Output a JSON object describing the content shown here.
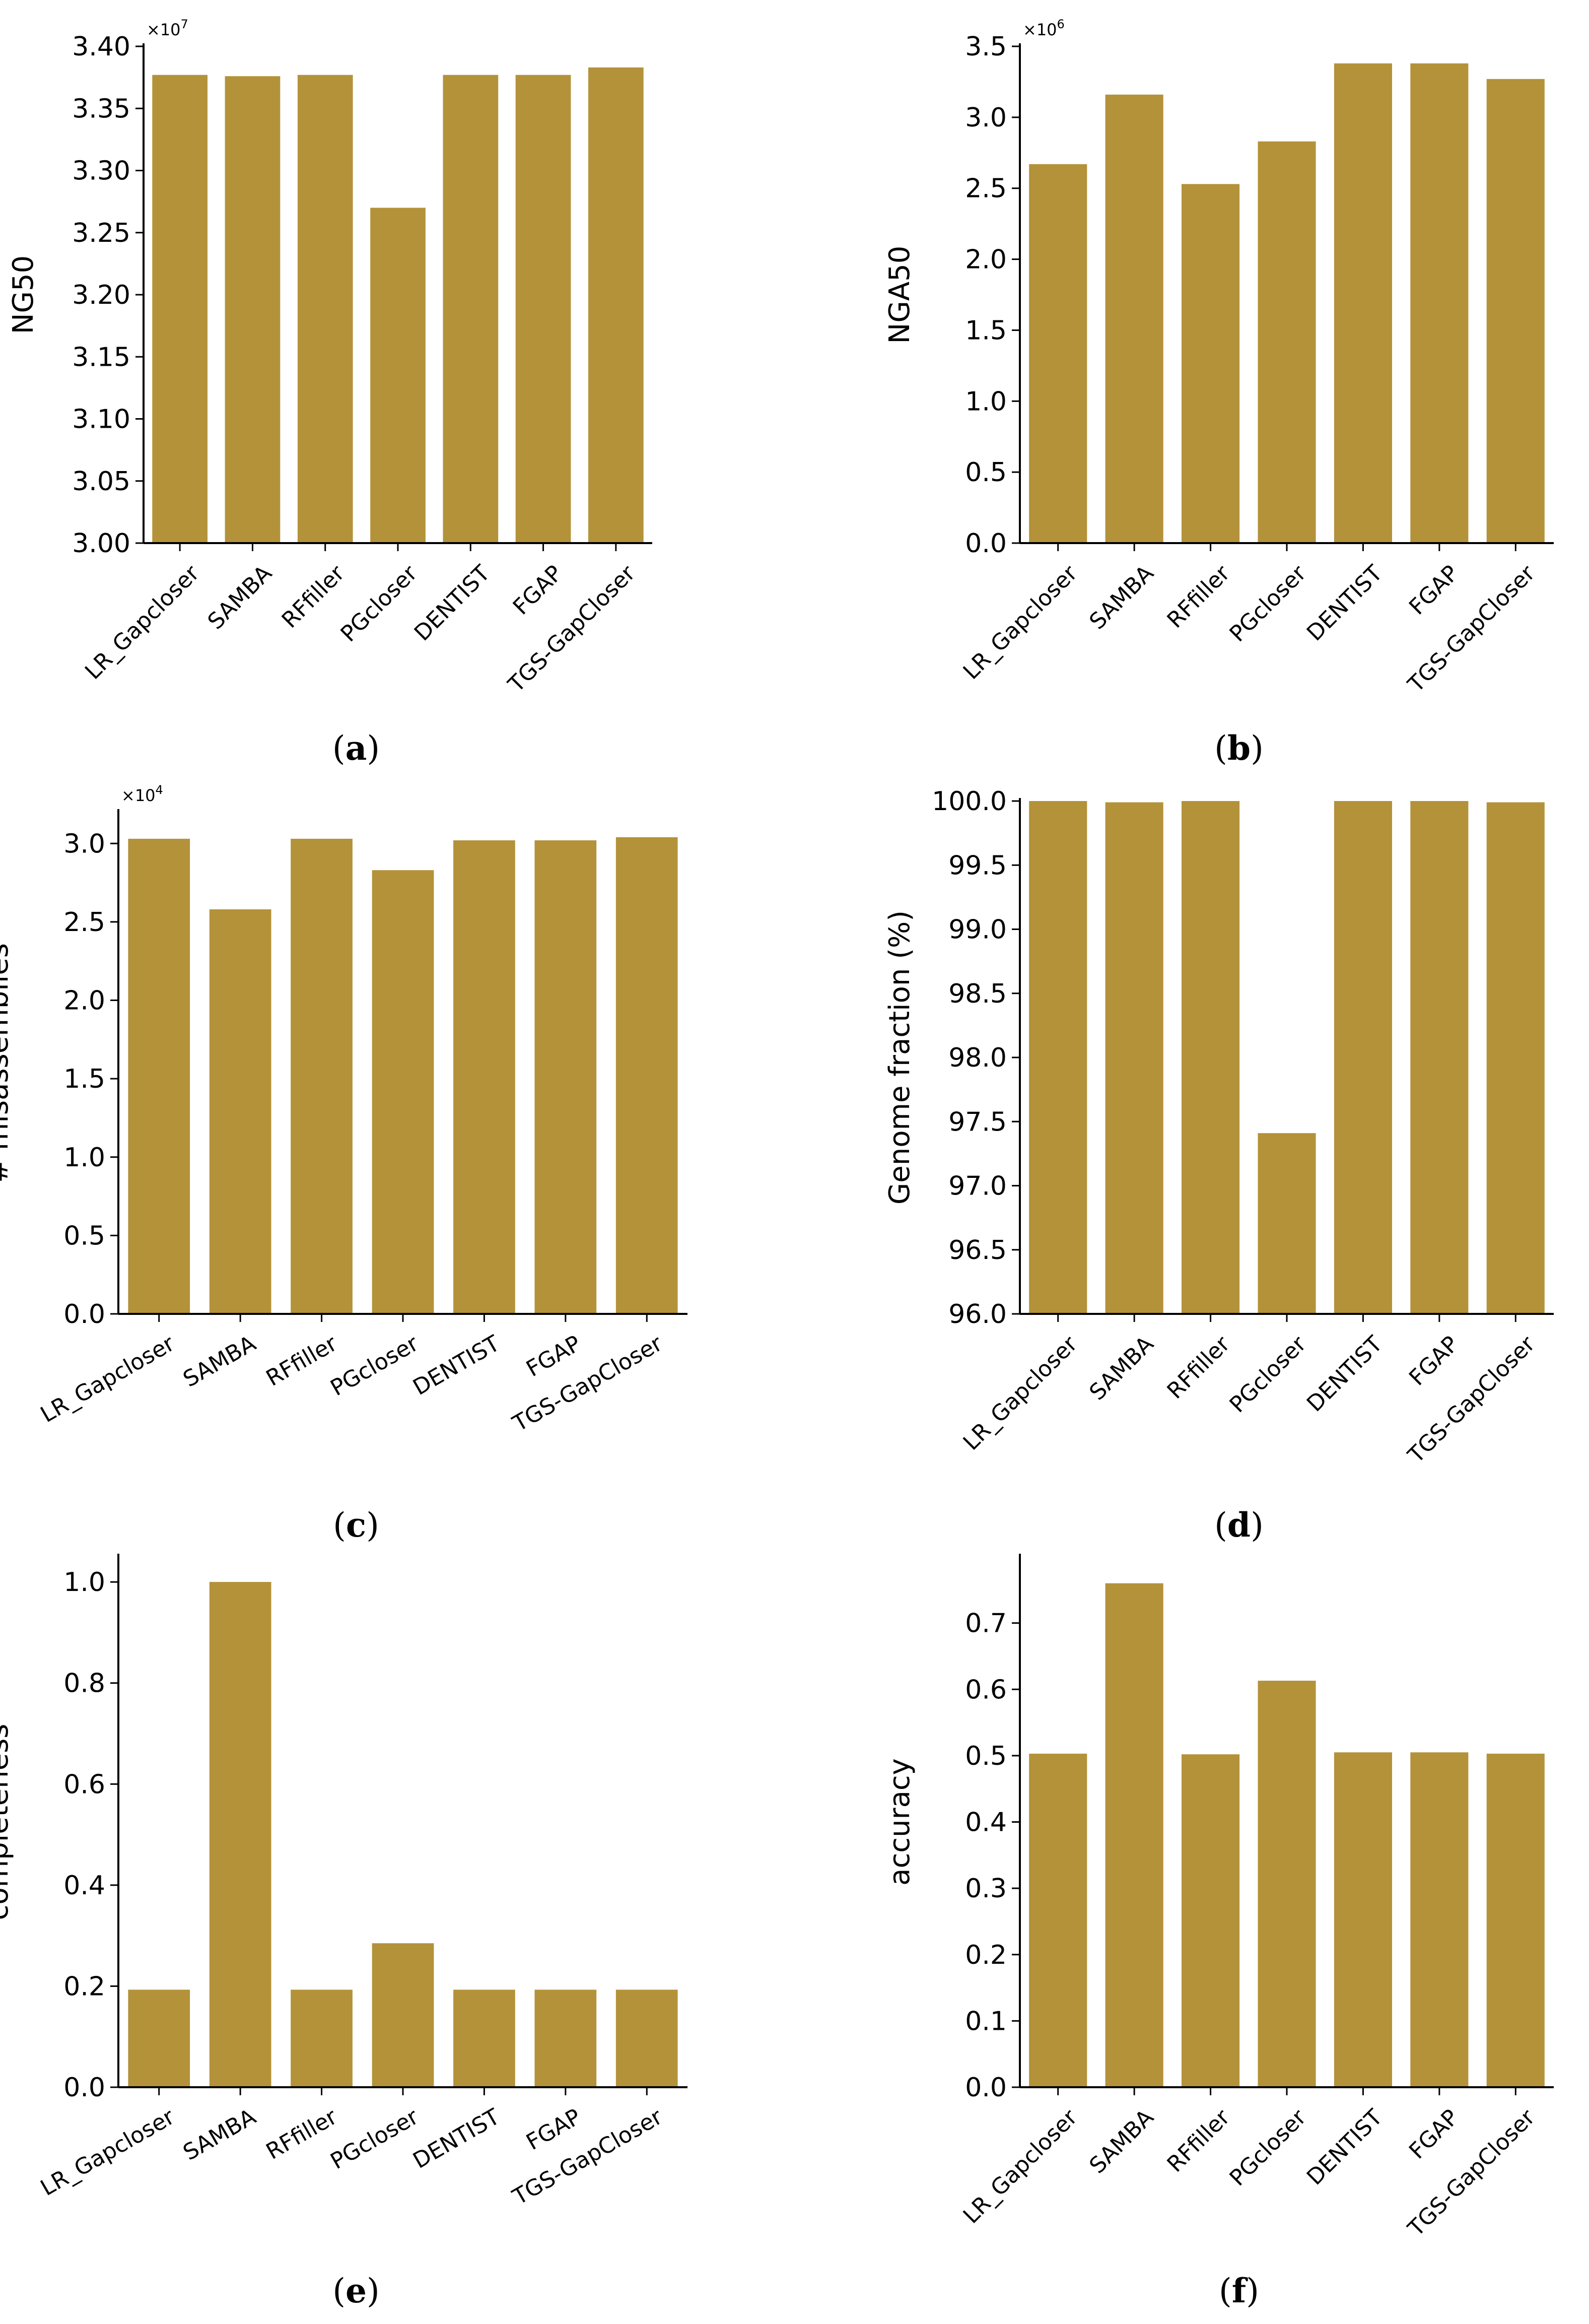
{
  "figure": {
    "bar_color": "#b39239",
    "axis_color": "#000000"
  },
  "chart_data": [
    {
      "id": "a",
      "type": "bar",
      "caption": "a",
      "categories": [
        "LR_Gapcloser",
        "SAMBA",
        "RFfiller",
        "PGcloser",
        "DENTIST",
        "FGAP",
        "TGS-GapCloser"
      ],
      "values": [
        3.377,
        3.376,
        3.377,
        3.27,
        3.377,
        3.377,
        3.383
      ],
      "ylabel": "NG50",
      "ylim": [
        3.0,
        3.4
      ],
      "yticks": [
        "3.00",
        "3.05",
        "3.10",
        "3.15",
        "3.20",
        "3.25",
        "3.30",
        "3.35",
        "3.40"
      ],
      "multiplier": "×10",
      "multiplier_exp": "7",
      "label_rotation": -45
    },
    {
      "id": "b",
      "type": "bar",
      "caption": "b",
      "categories": [
        "LR_Gapcloser",
        "SAMBA",
        "RFfiller",
        "PGcloser",
        "DENTIST",
        "FGAP",
        "TGS-GapCloser"
      ],
      "values": [
        2.67,
        3.16,
        2.53,
        2.83,
        3.38,
        3.38,
        3.27
      ],
      "ylabel": "NGA50",
      "ylim": [
        0.0,
        3.5
      ],
      "yticks": [
        "0.0",
        "0.5",
        "1.0",
        "1.5",
        "2.0",
        "2.5",
        "3.0",
        "3.5"
      ],
      "multiplier": "×10",
      "multiplier_exp": "6",
      "label_rotation": -45
    },
    {
      "id": "c",
      "type": "bar",
      "caption": "c",
      "categories": [
        "LR_Gapcloser",
        "SAMBA",
        "RFfiller",
        "PGcloser",
        "DENTIST",
        "FGAP",
        "TGS-GapCloser"
      ],
      "values": [
        3.03,
        2.58,
        3.03,
        2.83,
        3.02,
        3.02,
        3.04
      ],
      "ylabel": "# misassemblies",
      "ylim": [
        0.0,
        3.2
      ],
      "yticks": [
        "0.0",
        "0.5",
        "1.0",
        "1.5",
        "2.0",
        "2.5",
        "3.0"
      ],
      "multiplier": "×10",
      "multiplier_exp": "4",
      "label_rotation": -30
    },
    {
      "id": "d",
      "type": "bar",
      "caption": "d",
      "categories": [
        "LR_Gapcloser",
        "SAMBA",
        "RFfiller",
        "PGcloser",
        "DENTIST",
        "FGAP",
        "TGS-GapCloser"
      ],
      "values": [
        100.0,
        99.99,
        100.0,
        97.41,
        100.0,
        100.0,
        99.99
      ],
      "ylabel": "Genome fraction (%)",
      "ylim": [
        96.0,
        100.0
      ],
      "yticks": [
        "96.0",
        "96.5",
        "97.0",
        "97.5",
        "98.0",
        "98.5",
        "99.0",
        "99.5",
        "100.0"
      ],
      "multiplier": "",
      "multiplier_exp": "",
      "label_rotation": -45
    },
    {
      "id": "e",
      "type": "bar",
      "caption": "e",
      "categories": [
        "LR_Gapcloser",
        "SAMBA",
        "RFfiller",
        "PGcloser",
        "DENTIST",
        "FGAP",
        "TGS-GapCloser"
      ],
      "values": [
        0.193,
        1.0,
        0.193,
        0.285,
        0.193,
        0.193,
        0.193
      ],
      "ylabel": "completeness",
      "ylim": [
        0.0,
        1.05
      ],
      "yticks": [
        "0.0",
        "0.2",
        "0.4",
        "0.6",
        "0.8",
        "1.0"
      ],
      "multiplier": "",
      "multiplier_exp": "",
      "label_rotation": -30
    },
    {
      "id": "f",
      "type": "bar",
      "caption": "f",
      "categories": [
        "LR_Gapcloser",
        "SAMBA",
        "RFfiller",
        "PGcloser",
        "DENTIST",
        "FGAP",
        "TGS-GapCloser"
      ],
      "values": [
        0.503,
        0.76,
        0.502,
        0.613,
        0.505,
        0.505,
        0.503
      ],
      "ylabel": "accuracy",
      "ylim": [
        0.0,
        0.8
      ],
      "yticks": [
        "0.0",
        "0.1",
        "0.2",
        "0.3",
        "0.4",
        "0.5",
        "0.6",
        "0.7"
      ],
      "multiplier": "",
      "multiplier_exp": "",
      "label_rotation": -45
    }
  ]
}
